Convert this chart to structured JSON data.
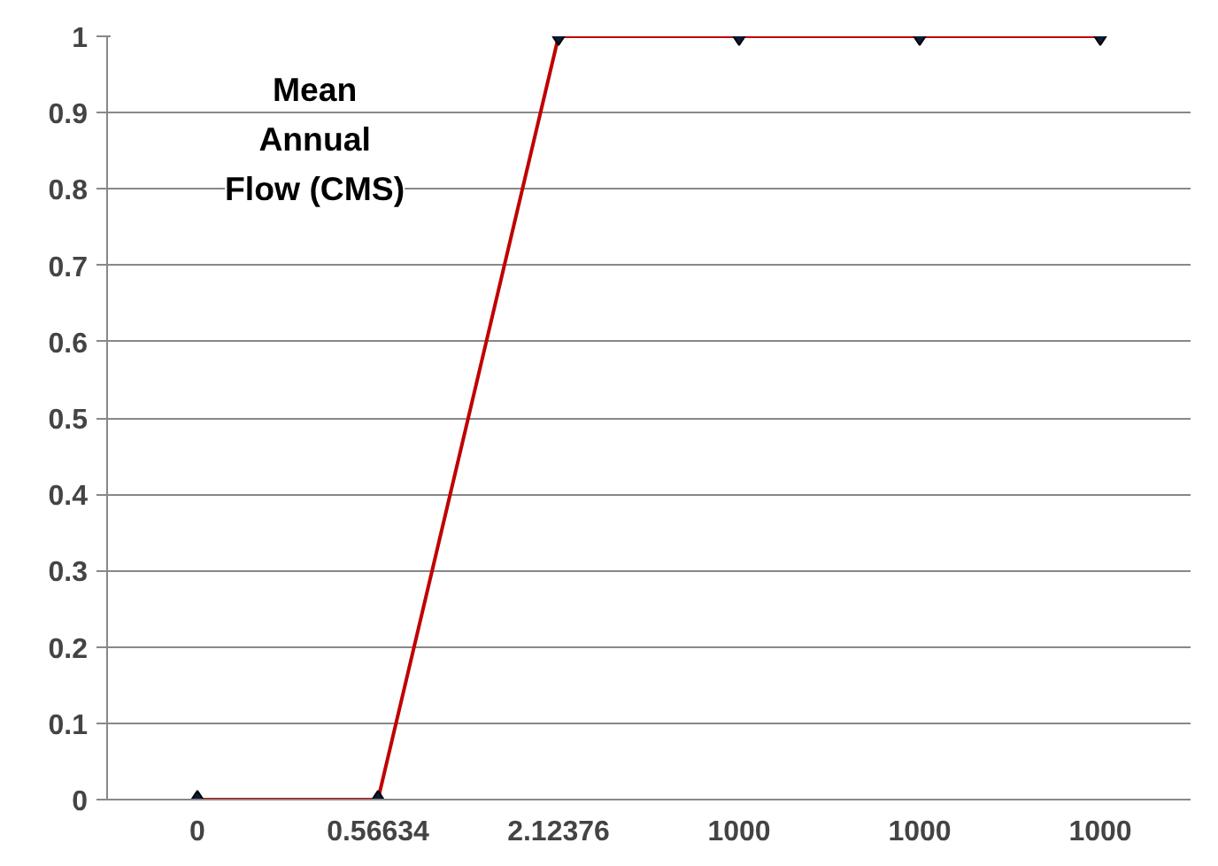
{
  "chart_data": {
    "type": "line",
    "annotations": [
      "Mean Annual Flow (CMS)"
    ],
    "categories": [
      "0",
      "0.56634",
      "2.12376",
      "1000",
      "1000",
      "1000"
    ],
    "series": [
      {
        "color": "#c00000",
        "values": [
          0,
          0,
          1,
          1,
          1,
          1
        ]
      }
    ],
    "ylim": [
      0,
      1
    ],
    "yticks": [
      0,
      0.1,
      0.2,
      0.3,
      0.4,
      0.5,
      0.6,
      0.7,
      0.8,
      0.9,
      1
    ],
    "grid": "y",
    "marker": "diamond",
    "line_style": "solid"
  }
}
